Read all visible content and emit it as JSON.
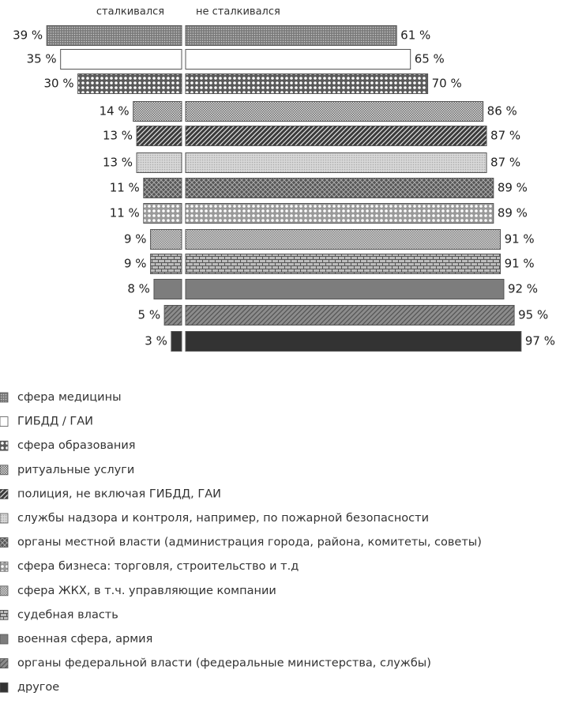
{
  "chart_data": {
    "type": "diverging-bar",
    "categories": [
      "сфера медицины",
      "ГИБДД / ГАИ",
      "сфера образования",
      "ритуальные услуги",
      "полиция, не включая ГИБДД, ГАИ",
      "службы надзора и контроля, например, по пожарной безопасности",
      "органы местной власти (администрация города, района, комитеты, советы)",
      "сфера бизнеса: торговля, строительство и т.д",
      "сфера ЖКХ, в т.ч. управляющие компании",
      "судебная власть",
      "военная сфера, армия",
      "органы федеральной власти (федеральные министерства, службы)",
      "другое"
    ],
    "colors": [
      "#7a7a7a",
      "#ffffff",
      "#5a5a5a",
      "#6a6a6a",
      "#3a3a3a",
      "#d8d8d8",
      "#555555",
      "#9a9a9a",
      "#cfcfcf",
      "#bdbdbd",
      "#7d7d7d",
      "#8c8c8c",
      "#333333"
    ],
    "patterns": [
      "dots",
      "none",
      "circles",
      "checker",
      "diagonal",
      "dots",
      "crosshatch",
      "circles",
      "checker",
      "bricks",
      "solid",
      "diagonal",
      "solid"
    ],
    "series": [
      {
        "name": "сталкивался",
        "values": [
          39,
          35,
          30,
          14,
          13,
          13,
          11,
          11,
          9,
          9,
          8,
          5,
          3
        ],
        "value_labels": [
          "39 %",
          "35 %",
          "30 %",
          "14 %",
          "13 %",
          "13 %",
          "11 %",
          "11 %",
          "9 %",
          "9 %",
          "8 %",
          "5 %",
          "3 %"
        ]
      },
      {
        "name": "не сталкивался",
        "values": [
          61,
          65,
          70,
          86,
          87,
          87,
          89,
          89,
          91,
          91,
          92,
          95,
          97
        ],
        "value_labels": [
          "61 %",
          "65 %",
          "70 %",
          "86 %",
          "87 %",
          "87 %",
          "89 %",
          "89 %",
          "91 %",
          "91 %",
          "92 %",
          "95 %",
          "97 %"
        ]
      }
    ]
  }
}
